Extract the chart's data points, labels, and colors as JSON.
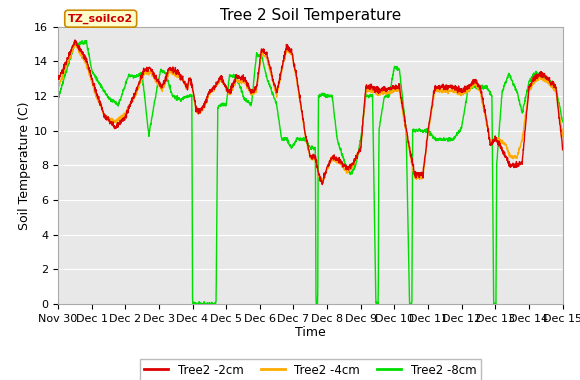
{
  "title": "Tree 2 Soil Temperature",
  "xlabel": "Time",
  "ylabel": "Soil Temperature (C)",
  "ylim": [
    0,
    16
  ],
  "yticks": [
    0,
    2,
    4,
    6,
    8,
    10,
    12,
    14,
    16
  ],
  "xtick_labels": [
    "Nov 30",
    "Dec 1",
    "Dec 2",
    "Dec 3",
    "Dec 4",
    "Dec 5",
    "Dec 6",
    "Dec 7",
    "Dec 8",
    "Dec 9",
    "Dec 10",
    "Dec 11",
    "Dec 12",
    "Dec 13",
    "Dec 14",
    "Dec 15"
  ],
  "color_2cm": "#dd0000",
  "color_4cm": "#ffaa00",
  "color_8cm": "#00dd00",
  "bg_color": "#e8e8e8",
  "plot_bg": "#e8e8e8",
  "fig_bg": "#ffffff",
  "annotation_text": "TZ_soilco2",
  "legend_labels": [
    "Tree2 -2cm",
    "Tree2 -4cm",
    "Tree2 -8cm"
  ],
  "title_fontsize": 11,
  "axis_fontsize": 9,
  "tick_fontsize": 8,
  "linewidth": 1.0
}
